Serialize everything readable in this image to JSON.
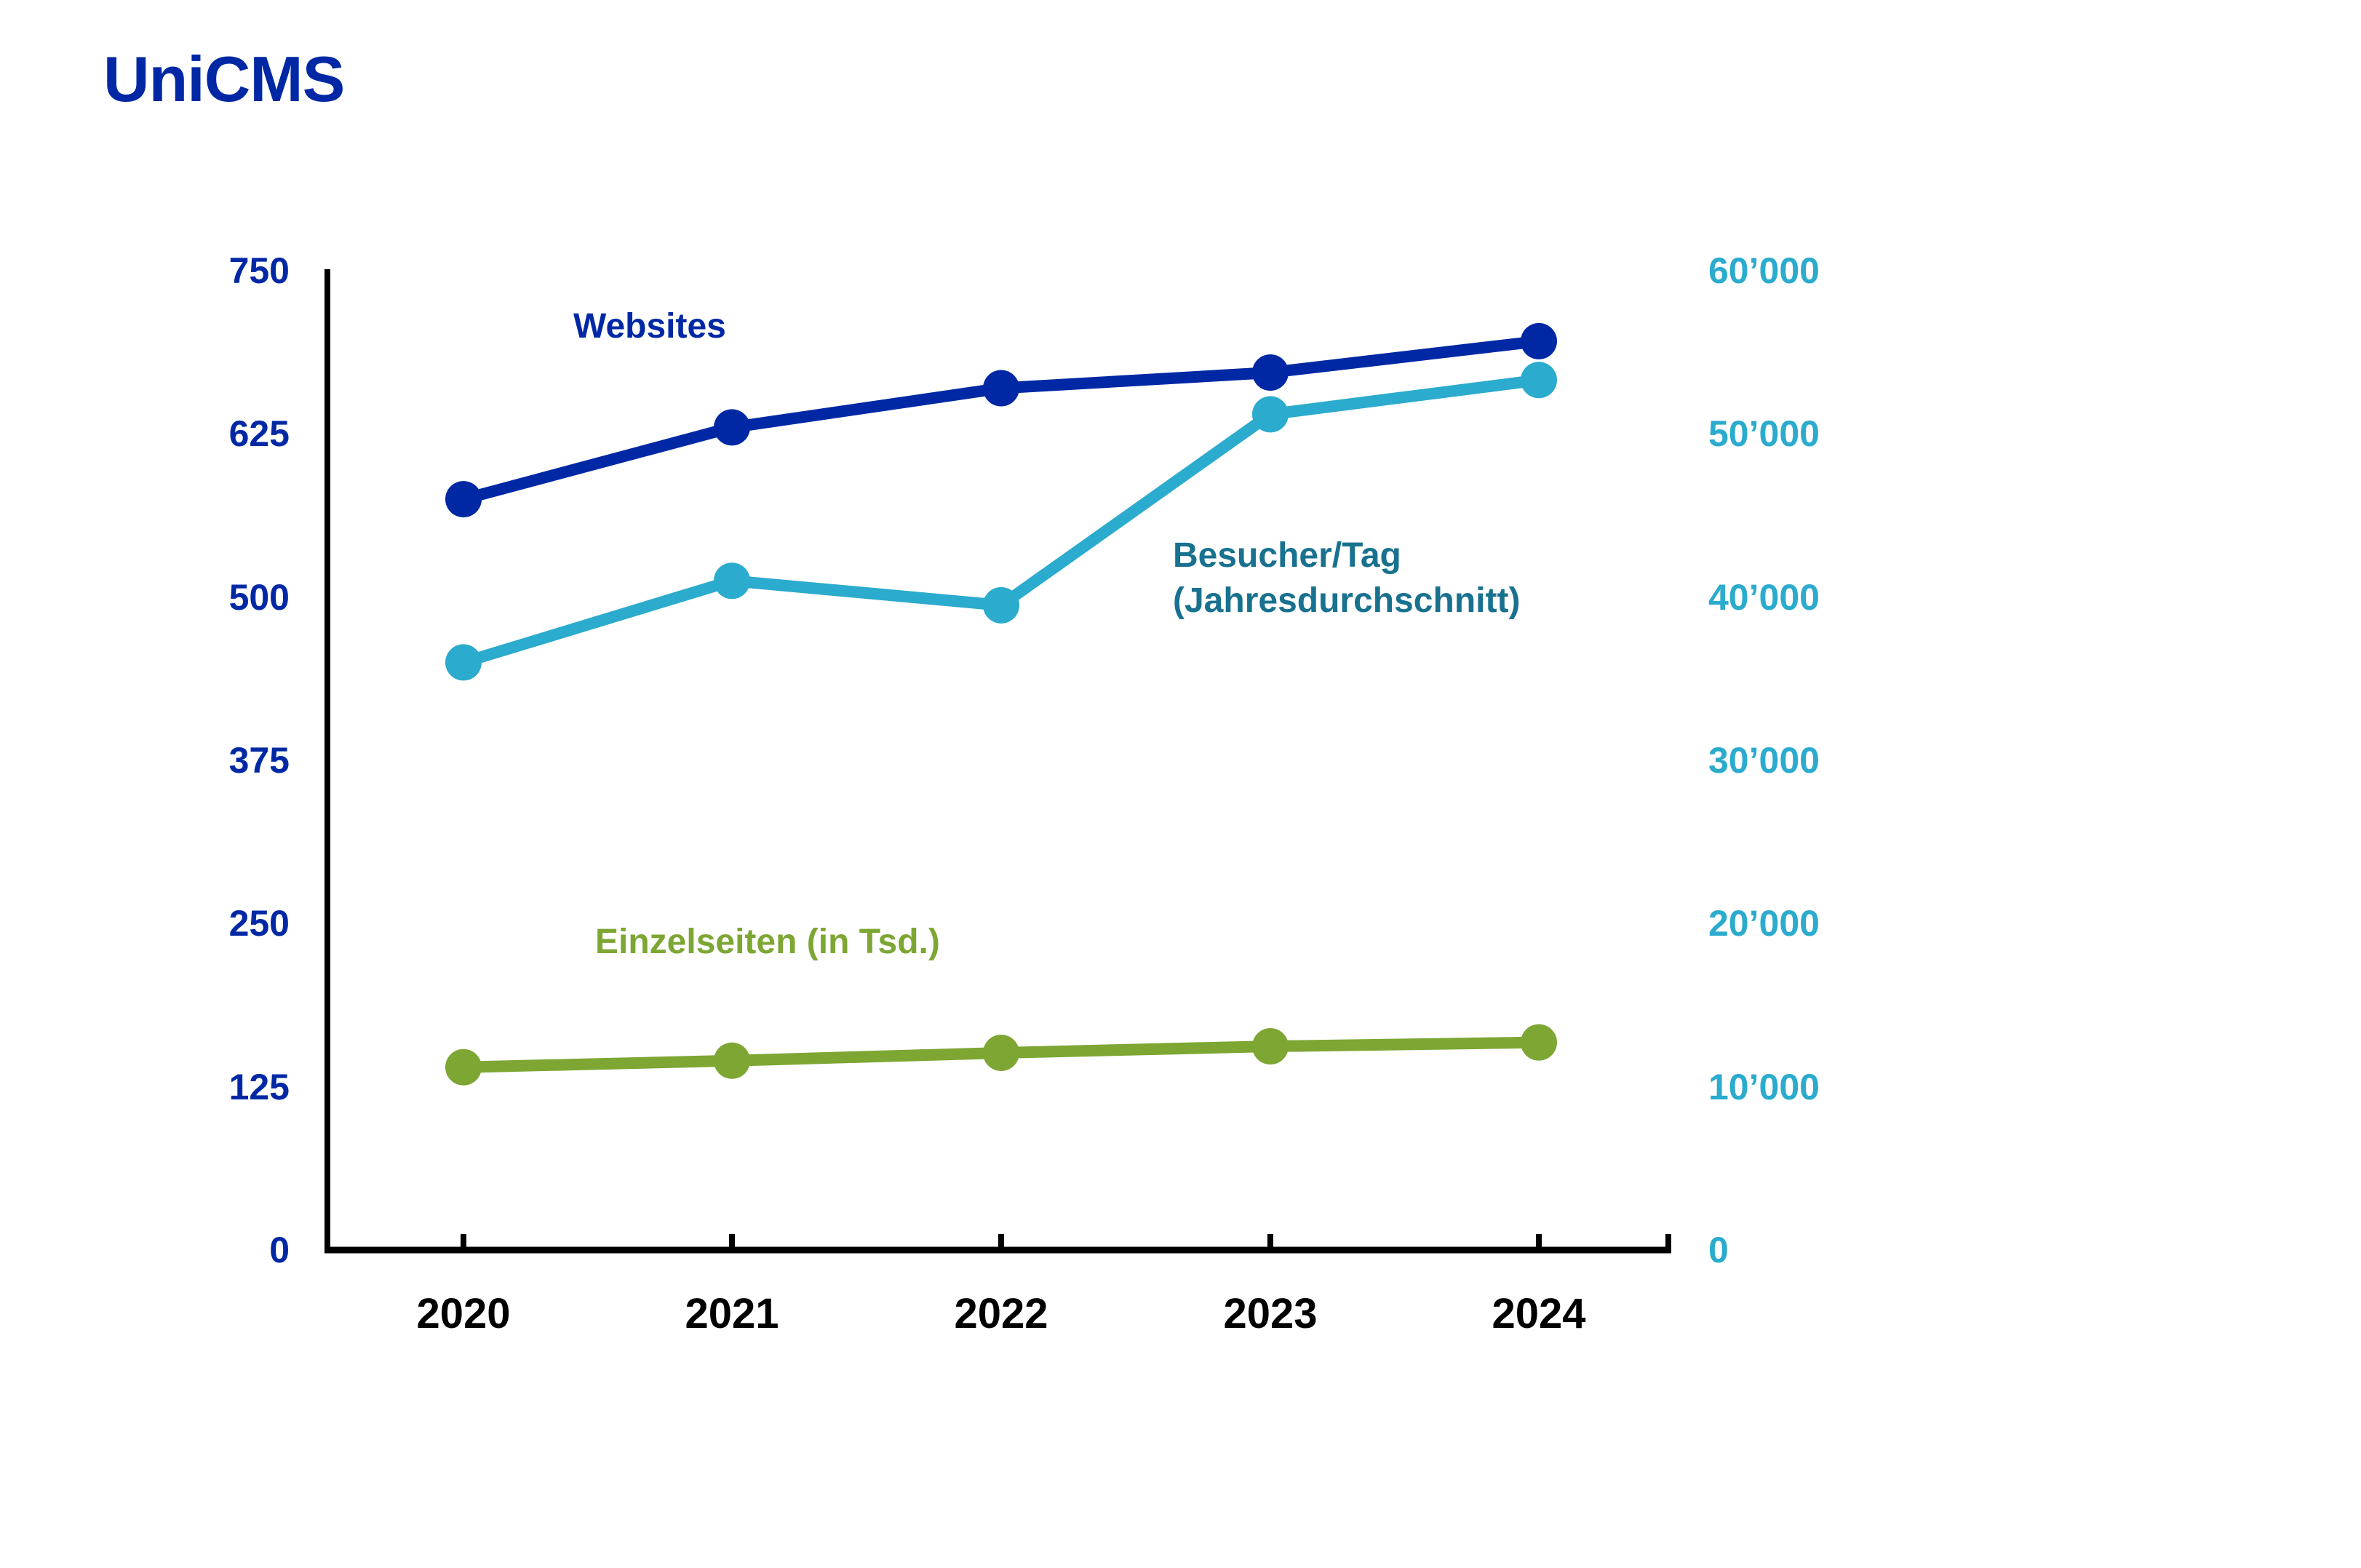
{
  "page": {
    "title": "UniCMS"
  },
  "colors": {
    "title": "#0028A5",
    "axis_lines": "#000000",
    "left_axis_labels": "#0028A5",
    "right_axis_labels": "#2BABCD",
    "year_labels": "#000000",
    "websites_label": "#0028A5",
    "besucher_label": "#18718F",
    "einzelseiten_label": "#7DA633",
    "background": "#FFFFFF"
  },
  "annotations": {
    "websites": {
      "text": "Websites"
    },
    "besucher": {
      "line1": "Besucher/Tag",
      "line2": "(Jahresdurchschnitt)"
    },
    "einzelseiten": {
      "text": "Einzelseiten (in Tsd.)"
    }
  },
  "chart_data": {
    "type": "line",
    "title": "UniCMS",
    "categories": [
      "2020",
      "2021",
      "2022",
      "2023",
      "2024"
    ],
    "series": [
      {
        "name": "Websites",
        "axis": "left",
        "color": "#0028A5",
        "values": [
          575,
          630,
          660,
          672,
          696
        ]
      },
      {
        "name": "Besucher/Tag (Jahresdurchschnitt)",
        "axis": "right",
        "color": "#2BABCD",
        "values": [
          36000,
          41000,
          39500,
          51200,
          53300
        ]
      },
      {
        "name": "Einzelseiten (in Tsd.)",
        "axis": "left",
        "color": "#7DA633",
        "values": [
          140,
          145,
          151,
          156,
          159
        ]
      }
    ],
    "left_axis": {
      "color": "#0028A5",
      "range": [
        0,
        750
      ],
      "ticks": [
        {
          "label": "0",
          "value": 0
        },
        {
          "label": "125",
          "value": 125
        },
        {
          "label": "250",
          "value": 250
        },
        {
          "label": "375",
          "value": 375
        },
        {
          "label": "500",
          "value": 500
        },
        {
          "label": "625",
          "value": 625
        },
        {
          "label": "750",
          "value": 750
        }
      ]
    },
    "right_axis": {
      "color": "#2BABCD",
      "range": [
        0,
        60000
      ],
      "ticks": [
        {
          "label": "0",
          "value": 0
        },
        {
          "label": "10’000",
          "value": 10000
        },
        {
          "label": "20’000",
          "value": 20000
        },
        {
          "label": "30’000",
          "value": 30000
        },
        {
          "label": "40’000",
          "value": 40000
        },
        {
          "label": "50’000",
          "value": 50000
        },
        {
          "label": "60’000",
          "value": 60000
        }
      ]
    },
    "grid": false,
    "legend_position": "inline-series-annotations",
    "marker": "circle"
  }
}
